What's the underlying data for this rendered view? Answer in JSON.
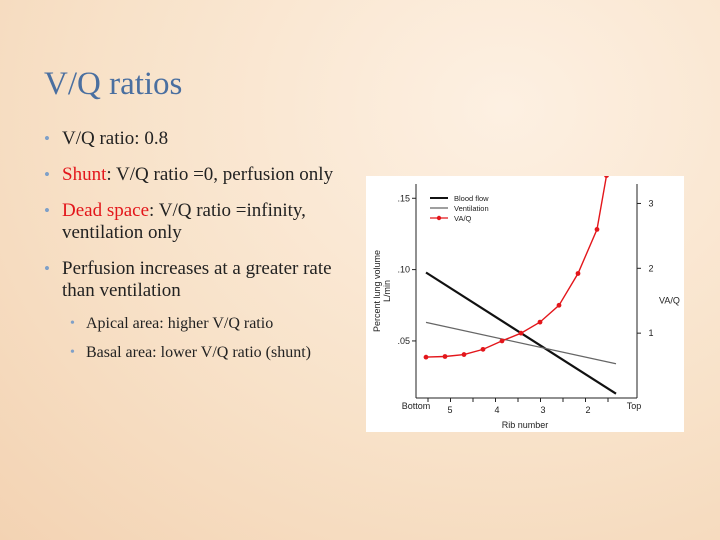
{
  "slide": {
    "title": "V/Q ratios",
    "bullets": [
      {
        "text": "V/Q ratio: 0.8"
      },
      {
        "highlight": "Shunt",
        "rest": ": V/Q ratio =0, perfusion only"
      },
      {
        "highlight": "Dead space",
        "rest": ": V/Q ratio =infinity, ventilation only"
      },
      {
        "text": "Perfusion increases at a greater rate than ventilation"
      }
    ],
    "sub_bullets": [
      "Apical area: higher V/Q ratio",
      "Basal area: lower V/Q ratio (shunt)"
    ],
    "colors": {
      "title": "#4a6fa0",
      "highlight": "#e3161b",
      "bullet": "#7fa0c8"
    }
  },
  "chart_data": {
    "type": "line",
    "xlabel": "Rib number",
    "x_end_labels": {
      "left": "Bottom",
      "right": "Top"
    },
    "x_ticks": [
      "5",
      "4",
      "3",
      "2"
    ],
    "ylabel": "Percent lung volume L/min",
    "y_ticks": [
      ".05",
      ".10",
      ".15"
    ],
    "ylim": [
      0.01,
      0.16
    ],
    "y2label": "VA/Q",
    "y2_ticks": [
      "1",
      "2",
      "3"
    ],
    "y2lim": [
      0,
      3.3
    ],
    "x_range": [
      0,
      10
    ],
    "series": [
      {
        "name": "Blood flow",
        "axis": "left",
        "color": "#111111",
        "marker": false,
        "x": [
          0,
          10
        ],
        "y": [
          0.098,
          0.013
        ]
      },
      {
        "name": "Ventilation",
        "axis": "left",
        "color": "#666666",
        "marker": false,
        "x": [
          0,
          10
        ],
        "y": [
          0.063,
          0.034
        ]
      },
      {
        "name": "VA/Q",
        "axis": "right",
        "color": "#e3161b",
        "marker": true,
        "x": [
          0,
          1,
          2,
          3,
          4,
          5,
          6,
          7,
          8,
          9,
          9.5
        ],
        "y": [
          0.63,
          0.64,
          0.67,
          0.75,
          0.88,
          1.0,
          1.17,
          1.43,
          1.92,
          2.6,
          3.43
        ]
      }
    ],
    "legend": {
      "placement": "top-left",
      "entries": [
        "Blood flow",
        "Ventilation",
        "VA/Q"
      ]
    }
  }
}
